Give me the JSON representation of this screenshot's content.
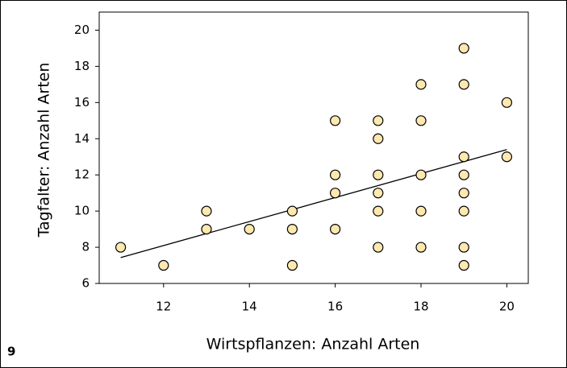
{
  "chart_data": {
    "type": "scatter",
    "x_label": "Wirtspflanzen: Anzahl Arten",
    "y_label": "Tagfalter: Anzahl Arten",
    "panel_label": "9",
    "x": [
      11,
      12,
      13,
      13,
      14,
      15,
      15,
      15,
      16,
      16,
      16,
      16,
      17,
      17,
      17,
      17,
      17,
      17,
      18,
      18,
      18,
      18,
      18,
      19,
      19,
      19,
      19,
      19,
      19,
      19,
      19,
      20,
      20
    ],
    "values": [
      8,
      7,
      10,
      9,
      9,
      10,
      9,
      7,
      15,
      12,
      11,
      9,
      15,
      14,
      12,
      11,
      10,
      8,
      17,
      15,
      12,
      10,
      8,
      19,
      17,
      13,
      12,
      11,
      10,
      8,
      7,
      16,
      13
    ],
    "color": "#fde8b0",
    "trendline": {
      "x": [
        11,
        20
      ],
      "values": [
        7.43,
        13.4
      ]
    },
    "xlim": [
      10.5,
      20.5
    ],
    "xticks": [
      12,
      14,
      16,
      18,
      20
    ],
    "ylim": [
      6,
      21
    ],
    "yticks": [
      6,
      8,
      10,
      12,
      14,
      16,
      18,
      20
    ]
  }
}
